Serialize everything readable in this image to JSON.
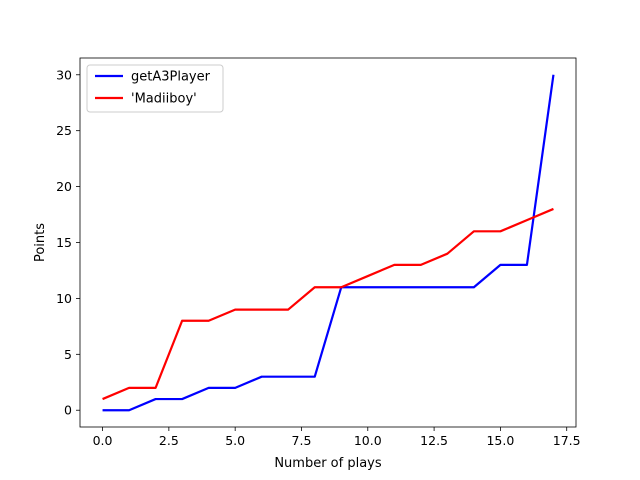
{
  "chart_data": {
    "type": "line",
    "title": "",
    "xlabel": "Number of plays",
    "ylabel": "Points",
    "xlim": [
      -0.85,
      17.85
    ],
    "ylim": [
      -1.5,
      31.5
    ],
    "xticks": [
      0.0,
      2.5,
      5.0,
      7.5,
      10.0,
      12.5,
      15.0,
      17.5
    ],
    "xtick_labels": [
      "0.0",
      "2.5",
      "5.0",
      "7.5",
      "10.0",
      "12.5",
      "15.0",
      "17.5"
    ],
    "yticks": [
      0,
      5,
      10,
      15,
      20,
      25,
      30
    ],
    "ytick_labels": [
      "0",
      "5",
      "10",
      "15",
      "20",
      "25",
      "30"
    ],
    "grid": false,
    "legend_position": "top-left",
    "x": [
      0,
      1,
      2,
      3,
      4,
      5,
      6,
      7,
      8,
      9,
      10,
      11,
      12,
      13,
      14,
      15,
      16,
      17
    ],
    "series": [
      {
        "name": "getA3Player",
        "color": "#0000ff",
        "values": [
          0,
          0,
          1,
          1,
          2,
          2,
          3,
          3,
          3,
          11,
          11,
          11,
          11,
          11,
          11,
          13,
          13,
          30
        ]
      },
      {
        "name": "'Madiiboy'",
        "color": "#ff0000",
        "values": [
          1,
          2,
          2,
          8,
          8,
          9,
          9,
          9,
          11,
          11,
          12,
          13,
          13,
          14,
          16,
          16,
          17,
          18
        ]
      }
    ]
  }
}
